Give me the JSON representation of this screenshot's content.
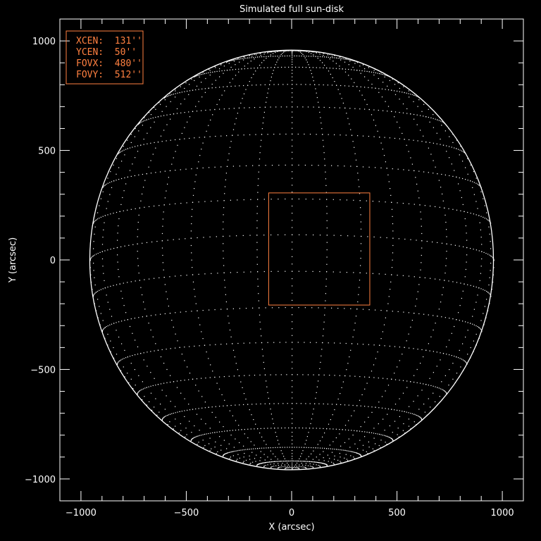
{
  "chart_data": {
    "type": "line",
    "title": "Simulated full sun-disk",
    "xlabel": "X (arcsec)",
    "ylabel": "Y (arcsec)",
    "xlim": [
      -1100,
      1100
    ],
    "ylim": [
      -1100,
      1100
    ],
    "xticks": [
      -1000,
      -500,
      0,
      500,
      1000
    ],
    "yticks": [
      -1000,
      -500,
      0,
      500,
      1000
    ],
    "xtick_labels": [
      "−1000",
      "−500",
      "0",
      "500",
      "1000"
    ],
    "ytick_labels": [
      "−1000",
      "−500",
      "0",
      "500",
      "1000"
    ],
    "minor_tick_step": 100,
    "grid": false,
    "solar_radius_arcsec": 958,
    "heliographic_grid_step_deg": 10,
    "b0_deg": -7,
    "fov_box": {
      "xcen": 131,
      "ycen": 50,
      "fovx": 480,
      "fovy": 512
    },
    "legend": {
      "placement": "top-left",
      "lines": [
        "XCEN:  131''",
        "YCEN:  50''",
        "FOVX:  480''",
        "FOVY:  512''"
      ]
    },
    "colors": {
      "background": "#000000",
      "axes": "#ffffff",
      "disk": "#ffffff",
      "fov": "#ff8040"
    }
  }
}
